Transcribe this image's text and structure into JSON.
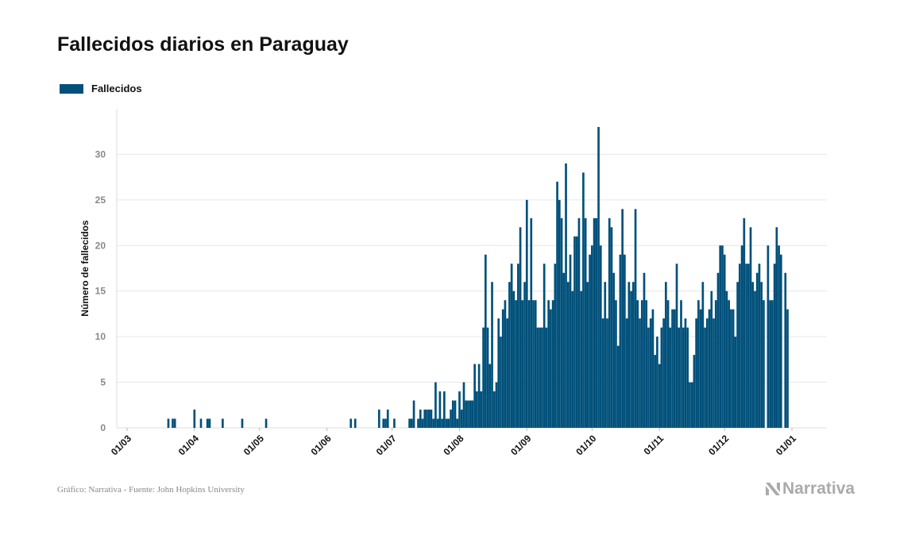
{
  "title": "Fallecidos diarios en Paraguay",
  "legend": {
    "label": "Fallecidos",
    "color": "#00507a"
  },
  "footer": {
    "source": "Gráfico: Narrativa - Fuente: John Hopkins University"
  },
  "brand": {
    "name": "Narrativa",
    "color": "#aaaaaa"
  },
  "chart_data": {
    "type": "bar",
    "ylabel": "Número de fallecidos",
    "ylim": [
      0,
      35
    ],
    "yticks": [
      0,
      5,
      10,
      15,
      20,
      25,
      30
    ],
    "grid": true,
    "legend_position": "top-left",
    "series": [
      {
        "name": "Fallecidos",
        "color": "#00507a"
      }
    ],
    "x_start": "2020-03-01",
    "x_end": "2021-01-01",
    "xticks": [
      "01/03",
      "01/04",
      "01/05",
      "01/06",
      "01/07",
      "01/08",
      "01/09",
      "01/10",
      "01/11",
      "01/12",
      "01/01"
    ],
    "points": [
      [
        "2020-03-20",
        1
      ],
      [
        "2020-03-22",
        1
      ],
      [
        "2020-03-23",
        1
      ],
      [
        "2020-04-01",
        2
      ],
      [
        "2020-04-04",
        1
      ],
      [
        "2020-04-07",
        1
      ],
      [
        "2020-04-08",
        1
      ],
      [
        "2020-04-14",
        1
      ],
      [
        "2020-04-23",
        1
      ],
      [
        "2020-05-04",
        1
      ],
      [
        "2020-06-12",
        1
      ],
      [
        "2020-06-14",
        1
      ],
      [
        "2020-06-25",
        2
      ],
      [
        "2020-06-27",
        1
      ],
      [
        "2020-06-28",
        1
      ],
      [
        "2020-06-29",
        2
      ],
      [
        "2020-07-02",
        1
      ],
      [
        "2020-07-09",
        1
      ],
      [
        "2020-07-10",
        1
      ],
      [
        "2020-07-11",
        3
      ],
      [
        "2020-07-13",
        1
      ],
      [
        "2020-07-14",
        2
      ],
      [
        "2020-07-15",
        1
      ],
      [
        "2020-07-16",
        2
      ],
      [
        "2020-07-17",
        2
      ],
      [
        "2020-07-18",
        2
      ],
      [
        "2020-07-19",
        2
      ],
      [
        "2020-07-20",
        1
      ],
      [
        "2020-07-21",
        5
      ],
      [
        "2020-07-22",
        1
      ],
      [
        "2020-07-23",
        4
      ],
      [
        "2020-07-24",
        1
      ],
      [
        "2020-07-25",
        4
      ],
      [
        "2020-07-26",
        1
      ],
      [
        "2020-07-27",
        1
      ],
      [
        "2020-07-28",
        2
      ],
      [
        "2020-07-29",
        3
      ],
      [
        "2020-07-30",
        3
      ],
      [
        "2020-07-31",
        1
      ],
      [
        "2020-08-01",
        4
      ],
      [
        "2020-08-02",
        2
      ],
      [
        "2020-08-03",
        5
      ],
      [
        "2020-08-04",
        3
      ],
      [
        "2020-08-05",
        3
      ],
      [
        "2020-08-06",
        3
      ],
      [
        "2020-08-07",
        3
      ],
      [
        "2020-08-08",
        7
      ],
      [
        "2020-08-09",
        4
      ],
      [
        "2020-08-10",
        7
      ],
      [
        "2020-08-11",
        4
      ],
      [
        "2020-08-12",
        11
      ],
      [
        "2020-08-13",
        19
      ],
      [
        "2020-08-14",
        11
      ],
      [
        "2020-08-15",
        7
      ],
      [
        "2020-08-16",
        16
      ],
      [
        "2020-08-17",
        4
      ],
      [
        "2020-08-18",
        5
      ],
      [
        "2020-08-19",
        12
      ],
      [
        "2020-08-20",
        10
      ],
      [
        "2020-08-21",
        13
      ],
      [
        "2020-08-22",
        14
      ],
      [
        "2020-08-23",
        12
      ],
      [
        "2020-08-24",
        16
      ],
      [
        "2020-08-25",
        18
      ],
      [
        "2020-08-26",
        15
      ],
      [
        "2020-08-27",
        14
      ],
      [
        "2020-08-28",
        18
      ],
      [
        "2020-08-29",
        22
      ],
      [
        "2020-08-30",
        14
      ],
      [
        "2020-08-31",
        16
      ],
      [
        "2020-09-01",
        25
      ],
      [
        "2020-09-02",
        14
      ],
      [
        "2020-09-03",
        23
      ],
      [
        "2020-09-04",
        14
      ],
      [
        "2020-09-05",
        14
      ],
      [
        "2020-09-06",
        11
      ],
      [
        "2020-09-07",
        11
      ],
      [
        "2020-09-08",
        11
      ],
      [
        "2020-09-09",
        18
      ],
      [
        "2020-09-10",
        11
      ],
      [
        "2020-09-11",
        14
      ],
      [
        "2020-09-12",
        13
      ],
      [
        "2020-09-13",
        14
      ],
      [
        "2020-09-14",
        18
      ],
      [
        "2020-09-15",
        27
      ],
      [
        "2020-09-16",
        25
      ],
      [
        "2020-09-17",
        23
      ],
      [
        "2020-09-18",
        17
      ],
      [
        "2020-09-19",
        29
      ],
      [
        "2020-09-20",
        16
      ],
      [
        "2020-09-21",
        19
      ],
      [
        "2020-09-22",
        15
      ],
      [
        "2020-09-23",
        21
      ],
      [
        "2020-09-24",
        21
      ],
      [
        "2020-09-25",
        23
      ],
      [
        "2020-09-26",
        15
      ],
      [
        "2020-09-27",
        28
      ],
      [
        "2020-09-28",
        23
      ],
      [
        "2020-09-29",
        16
      ],
      [
        "2020-09-30",
        19
      ],
      [
        "2020-10-01",
        20
      ],
      [
        "2020-10-02",
        23
      ],
      [
        "2020-10-03",
        23
      ],
      [
        "2020-10-04",
        33
      ],
      [
        "2020-10-05",
        20
      ],
      [
        "2020-10-06",
        12
      ],
      [
        "2020-10-07",
        16
      ],
      [
        "2020-10-08",
        12
      ],
      [
        "2020-10-09",
        23
      ],
      [
        "2020-10-10",
        22
      ],
      [
        "2020-10-11",
        17
      ],
      [
        "2020-10-12",
        14
      ],
      [
        "2020-10-13",
        9
      ],
      [
        "2020-10-14",
        19
      ],
      [
        "2020-10-15",
        24
      ],
      [
        "2020-10-16",
        19
      ],
      [
        "2020-10-17",
        12
      ],
      [
        "2020-10-18",
        16
      ],
      [
        "2020-10-19",
        15
      ],
      [
        "2020-10-20",
        16
      ],
      [
        "2020-10-21",
        24
      ],
      [
        "2020-10-22",
        14
      ],
      [
        "2020-10-23",
        12
      ],
      [
        "2020-10-24",
        14
      ],
      [
        "2020-10-25",
        17
      ],
      [
        "2020-10-26",
        14
      ],
      [
        "2020-10-27",
        11
      ],
      [
        "2020-10-28",
        12
      ],
      [
        "2020-10-29",
        13
      ],
      [
        "2020-10-30",
        8
      ],
      [
        "2020-10-31",
        10
      ],
      [
        "2020-11-01",
        7
      ],
      [
        "2020-11-02",
        11
      ],
      [
        "2020-11-03",
        12
      ],
      [
        "2020-11-04",
        16
      ],
      [
        "2020-11-05",
        14
      ],
      [
        "2020-11-06",
        11
      ],
      [
        "2020-11-07",
        13
      ],
      [
        "2020-11-08",
        13
      ],
      [
        "2020-11-09",
        18
      ],
      [
        "2020-11-10",
        11
      ],
      [
        "2020-11-11",
        14
      ],
      [
        "2020-11-12",
        11
      ],
      [
        "2020-11-13",
        12
      ],
      [
        "2020-11-14",
        11
      ],
      [
        "2020-11-15",
        5
      ],
      [
        "2020-11-16",
        5
      ],
      [
        "2020-11-17",
        8
      ],
      [
        "2020-11-18",
        12
      ],
      [
        "2020-11-19",
        14
      ],
      [
        "2020-11-20",
        13
      ],
      [
        "2020-11-21",
        16
      ],
      [
        "2020-11-22",
        11
      ],
      [
        "2020-11-23",
        12
      ],
      [
        "2020-11-24",
        13
      ],
      [
        "2020-11-25",
        15
      ],
      [
        "2020-11-26",
        12
      ],
      [
        "2020-11-27",
        14
      ],
      [
        "2020-11-28",
        17
      ],
      [
        "2020-11-29",
        20
      ],
      [
        "2020-11-30",
        20
      ],
      [
        "2020-12-01",
        19
      ],
      [
        "2020-12-02",
        15
      ],
      [
        "2020-12-03",
        14
      ],
      [
        "2020-12-04",
        13
      ],
      [
        "2020-12-05",
        13
      ],
      [
        "2020-12-06",
        10
      ],
      [
        "2020-12-07",
        16
      ],
      [
        "2020-12-08",
        18
      ],
      [
        "2020-12-09",
        20
      ],
      [
        "2020-12-10",
        23
      ],
      [
        "2020-12-11",
        18
      ],
      [
        "2020-12-12",
        18
      ],
      [
        "2020-12-13",
        22
      ],
      [
        "2020-12-14",
        16
      ],
      [
        "2020-12-15",
        15
      ],
      [
        "2020-12-16",
        17
      ],
      [
        "2020-12-17",
        18
      ],
      [
        "2020-12-18",
        16
      ],
      [
        "2020-12-19",
        14
      ],
      [
        "2020-12-21",
        20
      ],
      [
        "2020-12-22",
        14
      ],
      [
        "2020-12-23",
        14
      ],
      [
        "2020-12-24",
        18
      ],
      [
        "2020-12-25",
        22
      ],
      [
        "2020-12-26",
        20
      ],
      [
        "2020-12-27",
        19
      ],
      [
        "2020-12-29",
        17
      ],
      [
        "2020-12-30",
        13
      ]
    ]
  }
}
